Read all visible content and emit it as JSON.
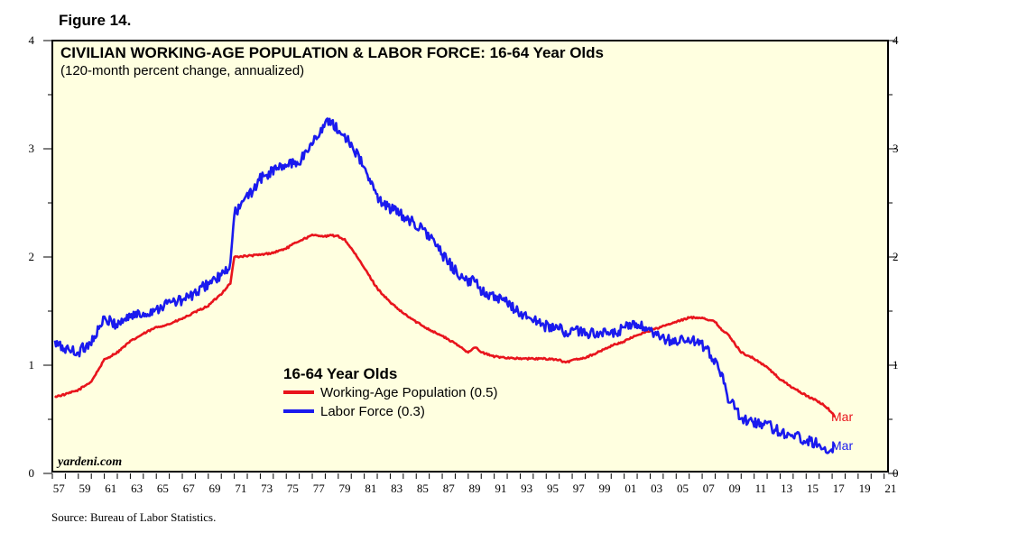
{
  "figure_label": "Figure 14.",
  "watermark": "yardeni.com",
  "source": "Source: Bureau of Labor Statistics.",
  "colors": {
    "plot_bg": "#ffffe0",
    "working_age": "#e8141c",
    "labor_force": "#1a1aee"
  },
  "chart_data": {
    "type": "line",
    "title": "CIVILIAN WORKING-AGE POPULATION & LABOR FORCE: 16-64 Year Olds",
    "subtitle": "(120-month percent change, annualized)",
    "xlabel": "",
    "ylabel": "",
    "xlim": [
      1957,
      2021.3
    ],
    "ylim": [
      0,
      4
    ],
    "yticks": [
      "0",
      "1",
      "2",
      "3",
      "4"
    ],
    "xticks": [
      "57",
      "59",
      "61",
      "63",
      "65",
      "67",
      "69",
      "71",
      "73",
      "75",
      "77",
      "79",
      "81",
      "83",
      "85",
      "87",
      "89",
      "91",
      "93",
      "95",
      "97",
      "99",
      "01",
      "03",
      "05",
      "07",
      "09",
      "11",
      "13",
      "15",
      "17",
      "19",
      "21"
    ],
    "grid": false,
    "legend": {
      "title": "16-64 Year Olds",
      "position": "center-left"
    },
    "series": [
      {
        "name": "Working-Age Population (0.5)",
        "color": "#e8141c",
        "end_label": "Mar",
        "x": [
          1957.2,
          1958,
          1959,
          1960,
          1961,
          1962,
          1963,
          1964,
          1965,
          1966,
          1967,
          1968,
          1969,
          1970,
          1970.7,
          1971,
          1972,
          1973,
          1974,
          1975,
          1976,
          1977,
          1977.5,
          1978,
          1978.5,
          1979,
          1979.5,
          1980,
          1981,
          1982,
          1983,
          1984,
          1985,
          1986,
          1987,
          1988,
          1989,
          1989.5,
          1990,
          1991,
          1992,
          1993,
          1994,
          1995,
          1996,
          1996.5,
          1997,
          1998,
          1999,
          2000,
          2001,
          2002,
          2003,
          2004,
          2005,
          2006,
          2007,
          2008,
          2008.5,
          2009,
          2010,
          2011,
          2012,
          2013,
          2014,
          2015,
          2016,
          2016.7,
          2017.2
        ],
        "values": [
          0.71,
          0.73,
          0.77,
          0.85,
          1.05,
          1.12,
          1.22,
          1.29,
          1.35,
          1.38,
          1.43,
          1.49,
          1.55,
          1.66,
          1.76,
          2.0,
          2.01,
          2.02,
          2.04,
          2.08,
          2.15,
          2.2,
          2.2,
          2.19,
          2.2,
          2.19,
          2.16,
          2.08,
          1.9,
          1.71,
          1.58,
          1.48,
          1.4,
          1.33,
          1.27,
          1.2,
          1.12,
          1.17,
          1.12,
          1.08,
          1.07,
          1.06,
          1.06,
          1.06,
          1.05,
          1.02,
          1.05,
          1.07,
          1.12,
          1.18,
          1.22,
          1.28,
          1.32,
          1.36,
          1.4,
          1.44,
          1.44,
          1.4,
          1.33,
          1.28,
          1.12,
          1.06,
          0.98,
          0.87,
          0.79,
          0.72,
          0.66,
          0.6,
          0.52
        ]
      },
      {
        "name": "Labor Force (0.3)",
        "color": "#1a1aee",
        "end_label": "Mar",
        "x": [
          1957.2,
          1958,
          1959,
          1960,
          1961,
          1962,
          1963,
          1964,
          1965,
          1966,
          1967,
          1968,
          1969,
          1970,
          1970.7,
          1971,
          1972,
          1973,
          1974,
          1975,
          1976,
          1977,
          1977.5,
          1978,
          1978.5,
          1979,
          1979.5,
          1980,
          1981,
          1982,
          1983,
          1984,
          1985,
          1986,
          1987,
          1988,
          1989,
          1989.5,
          1990,
          1991,
          1992,
          1993,
          1994,
          1995,
          1996,
          1996.5,
          1997,
          1998,
          1999,
          2000,
          2001,
          2002,
          2003,
          2004,
          2005,
          2006,
          2007,
          2008,
          2008.5,
          2009,
          2010,
          2011,
          2012,
          2013,
          2014,
          2015,
          2016,
          2016.7,
          2017.2
        ],
        "values": [
          1.2,
          1.15,
          1.12,
          1.22,
          1.42,
          1.38,
          1.46,
          1.47,
          1.52,
          1.58,
          1.6,
          1.66,
          1.76,
          1.82,
          1.92,
          2.4,
          2.55,
          2.72,
          2.8,
          2.85,
          2.88,
          3.05,
          3.15,
          3.22,
          3.27,
          3.15,
          3.12,
          3.05,
          2.82,
          2.55,
          2.45,
          2.38,
          2.3,
          2.2,
          2.02,
          1.88,
          1.75,
          1.8,
          1.7,
          1.62,
          1.58,
          1.48,
          1.42,
          1.36,
          1.34,
          1.3,
          1.32,
          1.3,
          1.3,
          1.28,
          1.34,
          1.38,
          1.3,
          1.24,
          1.22,
          1.24,
          1.18,
          1.05,
          0.92,
          0.7,
          0.5,
          0.48,
          0.45,
          0.38,
          0.36,
          0.3,
          0.28,
          0.21,
          0.25
        ]
      }
    ]
  }
}
